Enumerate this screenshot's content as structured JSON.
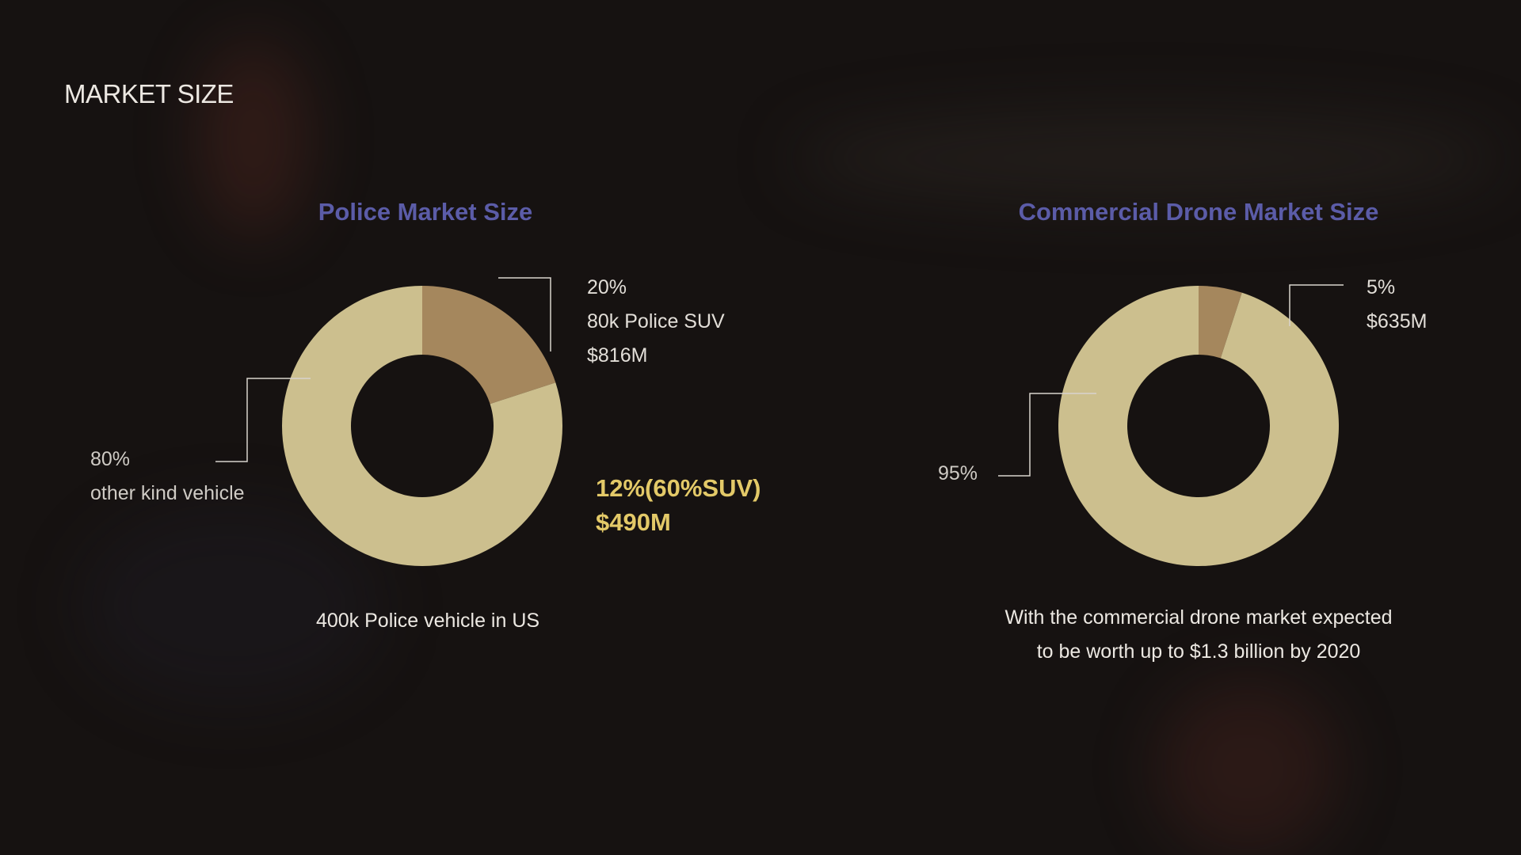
{
  "slide": {
    "title": "MARKET SIZE"
  },
  "colors": {
    "ring": "#ccbf8e",
    "segment": "#a5875d",
    "title": "#5b5ca8",
    "highlight": "#e3c968",
    "leader": "#d8d4ce"
  },
  "chart_data": [
    {
      "type": "pie",
      "donut": true,
      "title": "Police Market Size",
      "slices": [
        {
          "label": "80k Police SUV",
          "percent": 20,
          "value": "$816M",
          "color": "#a5875d"
        },
        {
          "label": "other kind vehicle",
          "percent": 80,
          "color": "#ccbf8e"
        }
      ],
      "annotations": {
        "small_pct": "20%",
        "small_line1": "80k Police SUV",
        "small_line2": "$816M",
        "large_pct": "80%",
        "large_line1": "other kind vehicle",
        "highlight_line1": "12%(60%SUV)",
        "highlight_line2": "$490M",
        "caption": "400k Police vehicle in US"
      }
    },
    {
      "type": "pie",
      "donut": true,
      "title": "Commercial Drone Market Size",
      "slices": [
        {
          "percent": 5,
          "value": "$635M",
          "color": "#a5875d"
        },
        {
          "percent": 95,
          "color": "#ccbf8e"
        }
      ],
      "annotations": {
        "small_pct": "5%",
        "small_line1": "$635M",
        "large_pct": "95%",
        "caption_line1": "With the commercial drone market expected",
        "caption_line2": "to be worth up to $1.3 billion by 2020"
      }
    }
  ]
}
